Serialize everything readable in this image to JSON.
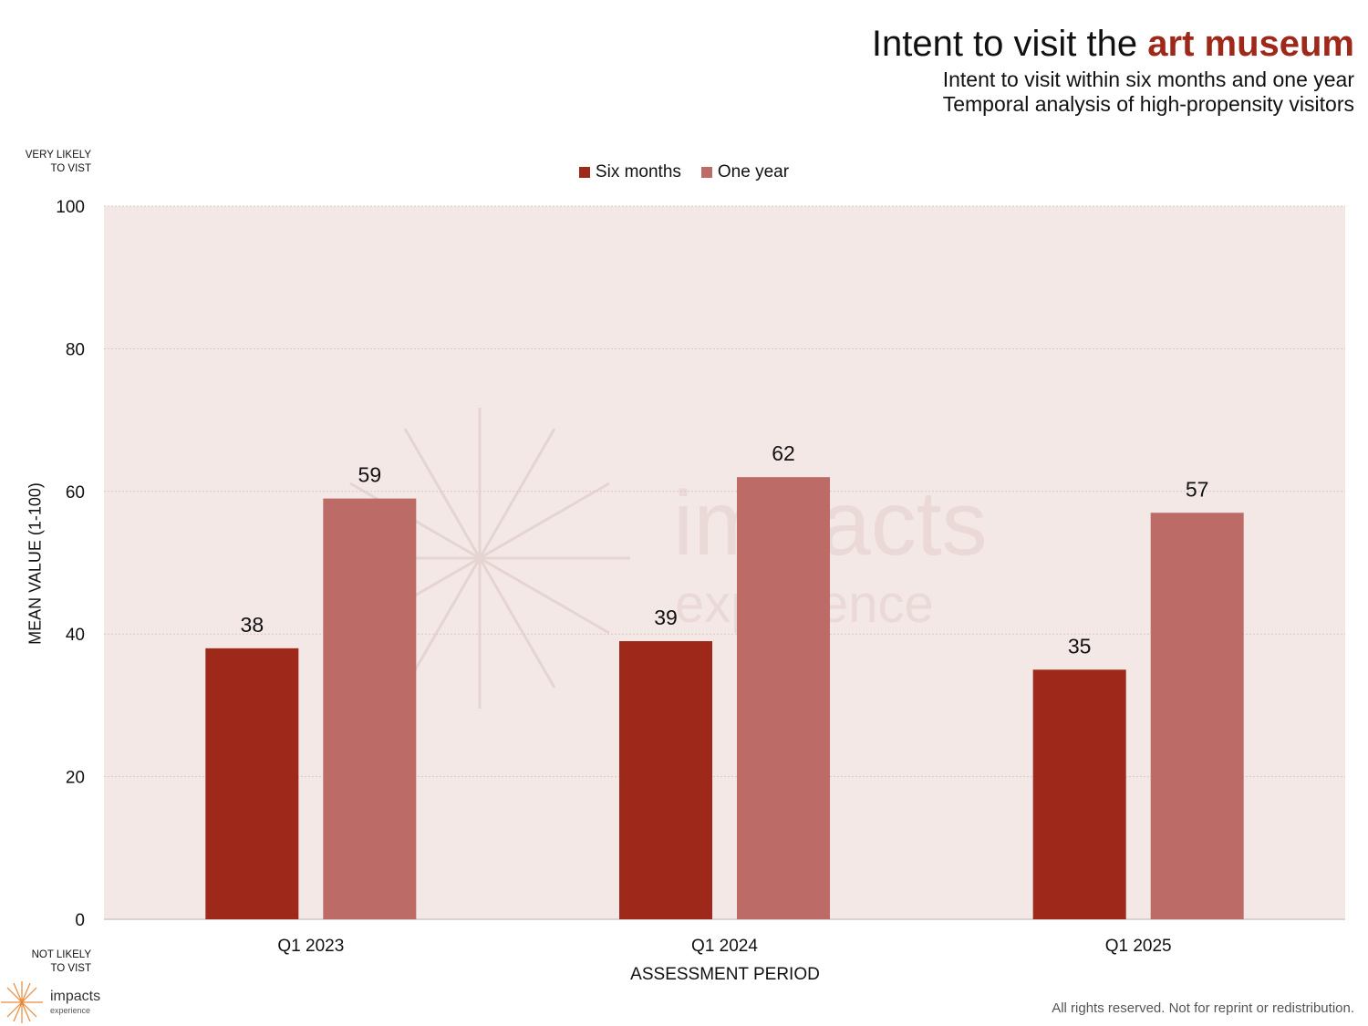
{
  "header": {
    "title_prefix": "Intent to visit the ",
    "title_accent": "art museum",
    "subtitle_1": "Intent to visit within six months and one year",
    "subtitle_2": "Temporal analysis of high-propensity visitors"
  },
  "scale_notes": {
    "top_line1": "VERY LIKELY",
    "top_line2": "TO VIST",
    "bottom_line1": "NOT LIKELY",
    "bottom_line2": "TO VIST"
  },
  "brand": {
    "name": "impacts",
    "tagline": "experience",
    "accent_color": "#9e2819",
    "secondary_color": "#bd6b66"
  },
  "footer": {
    "rights": "All rights reserved. Not for reprint or redistribution."
  },
  "chart_data": {
    "type": "bar",
    "categories": [
      "Q1 2023",
      "Q1 2024",
      "Q1 2025"
    ],
    "series": [
      {
        "name": "Six months",
        "values": [
          38,
          39,
          35
        ],
        "color": "#9e2819"
      },
      {
        "name": "One year",
        "values": [
          59,
          62,
          57
        ],
        "color": "#bd6b66"
      }
    ],
    "xlabel": "ASSESSMENT PERIOD",
    "ylabel": "MEAN VALUE (1-100)",
    "ylim": [
      0,
      100
    ],
    "yticks": [
      0,
      20,
      40,
      60,
      80,
      100
    ],
    "grid": true,
    "legend_position": "top-center",
    "plot_background": "#f4e8e7"
  }
}
